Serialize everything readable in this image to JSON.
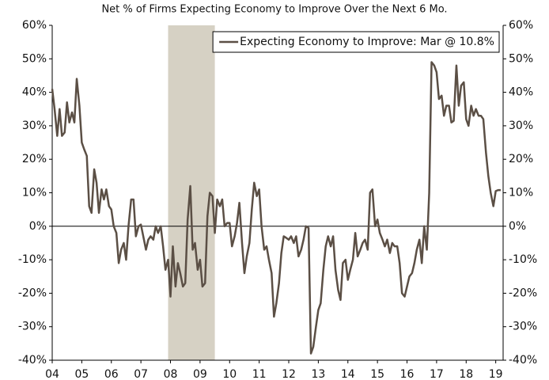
{
  "chart_data": {
    "type": "line",
    "subtitle": "Net % of Firms Expecting Economy to Improve Over the Next 6 Mo.",
    "x": [
      2004,
      2004.08,
      2004.17,
      2004.25,
      2004.33,
      2004.42,
      2004.5,
      2004.58,
      2004.67,
      2004.75,
      2004.83,
      2004.92,
      2005,
      2005.08,
      2005.17,
      2005.25,
      2005.33,
      2005.42,
      2005.5,
      2005.58,
      2005.67,
      2005.75,
      2005.83,
      2005.92,
      2006,
      2006.08,
      2006.17,
      2006.25,
      2006.33,
      2006.42,
      2006.5,
      2006.58,
      2006.67,
      2006.75,
      2006.83,
      2006.92,
      2007,
      2007.08,
      2007.17,
      2007.25,
      2007.33,
      2007.42,
      2007.5,
      2007.58,
      2007.67,
      2007.75,
      2007.83,
      2007.92,
      2008,
      2008.08,
      2008.17,
      2008.25,
      2008.33,
      2008.42,
      2008.5,
      2008.58,
      2008.67,
      2008.75,
      2008.83,
      2008.92,
      2009,
      2009.08,
      2009.17,
      2009.25,
      2009.33,
      2009.42,
      2009.5,
      2009.58,
      2009.67,
      2009.75,
      2009.83,
      2009.92,
      2010,
      2010.08,
      2010.17,
      2010.25,
      2010.33,
      2010.42,
      2010.5,
      2010.58,
      2010.67,
      2010.75,
      2010.83,
      2010.92,
      2011,
      2011.08,
      2011.17,
      2011.25,
      2011.33,
      2011.42,
      2011.5,
      2011.58,
      2011.67,
      2011.75,
      2011.83,
      2011.92,
      2012,
      2012.08,
      2012.17,
      2012.25,
      2012.33,
      2012.42,
      2012.5,
      2012.58,
      2012.67,
      2012.75,
      2012.83,
      2012.92,
      2013,
      2013.08,
      2013.17,
      2013.25,
      2013.33,
      2013.42,
      2013.5,
      2013.58,
      2013.67,
      2013.75,
      2013.83,
      2013.92,
      2014,
      2014.08,
      2014.17,
      2014.25,
      2014.33,
      2014.42,
      2014.5,
      2014.58,
      2014.67,
      2014.75,
      2014.83,
      2014.92,
      2015,
      2015.08,
      2015.17,
      2015.25,
      2015.33,
      2015.42,
      2015.5,
      2015.58,
      2015.67,
      2015.75,
      2015.83,
      2015.92,
      2016,
      2016.08,
      2016.17,
      2016.25,
      2016.33,
      2016.42,
      2016.5,
      2016.58,
      2016.67,
      2016.75,
      2016.83,
      2016.92,
      2017,
      2017.08,
      2017.17,
      2017.25,
      2017.33,
      2017.42,
      2017.5,
      2017.58,
      2017.67,
      2017.75,
      2017.83,
      2017.92,
      2018,
      2018.08,
      2018.17,
      2018.25,
      2018.33,
      2018.42,
      2018.5,
      2018.58,
      2018.67,
      2018.75,
      2018.83,
      2018.92,
      2019,
      2019.08,
      2019.17
    ],
    "series": [
      {
        "name": "Expecting Economy to Improve: Mar @ 10.8%",
        "color": "#5b4f45",
        "values": [
          41,
          35,
          27,
          35,
          27,
          28,
          37,
          31,
          34,
          31,
          44,
          36,
          25,
          23,
          21,
          6,
          4,
          17,
          13,
          4,
          11,
          8,
          11,
          6,
          5,
          0,
          -2,
          -11,
          -7,
          -5,
          -10,
          0,
          8,
          8,
          -3,
          0,
          0.5,
          -3,
          -7,
          -4,
          -3,
          -4,
          0,
          -2,
          0,
          -6,
          -13,
          -10,
          -21,
          -6,
          -18,
          -11,
          -14,
          -18,
          -17,
          2,
          12,
          -7,
          -5,
          -13,
          -10,
          -18,
          -17,
          3,
          10,
          9,
          -2,
          8,
          6,
          8,
          0,
          1,
          1,
          -6,
          -3,
          1,
          7,
          -5,
          -14,
          -9,
          -5,
          5,
          13,
          9,
          11,
          0,
          -7,
          -6,
          -10,
          -14,
          -27,
          -23,
          -17,
          -8,
          -3,
          -3.5,
          -4,
          -3,
          -5,
          -3,
          -9,
          -7,
          -4,
          0,
          -0.5,
          -38,
          -36,
          -30,
          -25,
          -23,
          -13,
          -6,
          -3,
          -6,
          -3,
          -13,
          -19,
          -22,
          -11,
          -10,
          -16,
          -13,
          -10,
          -2,
          -9,
          -7,
          -5,
          -4,
          -7,
          10,
          11,
          0,
          2,
          -2,
          -4,
          -6,
          -4,
          -8,
          -5,
          -6,
          -6,
          -11,
          -20,
          -21,
          -18,
          -15,
          -14,
          -11,
          -7,
          -4,
          -11,
          0,
          -7,
          10,
          49,
          48,
          46,
          38,
          39,
          33,
          36,
          36,
          31,
          31.5,
          48,
          36,
          42,
          43,
          32,
          30,
          36,
          33,
          35,
          33,
          33,
          32,
          22,
          15,
          10,
          6,
          10.5,
          10.8,
          10.8
        ]
      }
    ],
    "xlim": [
      2004,
      2019.25
    ],
    "xticks": [
      {
        "value": 2004,
        "label": "04"
      },
      {
        "value": 2005,
        "label": "05"
      },
      {
        "value": 2006,
        "label": "06"
      },
      {
        "value": 2007,
        "label": "07"
      },
      {
        "value": 2008,
        "label": "08"
      },
      {
        "value": 2009,
        "label": "09"
      },
      {
        "value": 2010,
        "label": "10"
      },
      {
        "value": 2011,
        "label": "11"
      },
      {
        "value": 2012,
        "label": "12"
      },
      {
        "value": 2013,
        "label": "13"
      },
      {
        "value": 2014,
        "label": "14"
      },
      {
        "value": 2015,
        "label": "15"
      },
      {
        "value": 2016,
        "label": "16"
      },
      {
        "value": 2017,
        "label": "17"
      },
      {
        "value": 2018,
        "label": "18"
      },
      {
        "value": 2019,
        "label": "19"
      }
    ],
    "ylim": [
      -40,
      60
    ],
    "yticks": [
      {
        "value": -40,
        "label": "-40%"
      },
      {
        "value": -30,
        "label": "-30%"
      },
      {
        "value": -20,
        "label": "-20%"
      },
      {
        "value": -10,
        "label": "-10%"
      },
      {
        "value": 0,
        "label": "0%"
      },
      {
        "value": 10,
        "label": "10%"
      },
      {
        "value": 20,
        "label": "20%"
      },
      {
        "value": 30,
        "label": "30%"
      },
      {
        "value": 40,
        "label": "40%"
      },
      {
        "value": 50,
        "label": "50%"
      },
      {
        "value": 60,
        "label": "60%"
      }
    ],
    "y2lim": [
      -40,
      60
    ],
    "y2ticks": [
      {
        "value": -40,
        "label": "-40%"
      },
      {
        "value": -30,
        "label": "-30%"
      },
      {
        "value": -20,
        "label": "-20%"
      },
      {
        "value": -10,
        "label": "-10%"
      },
      {
        "value": 0,
        "label": "0%"
      },
      {
        "value": 10,
        "label": "10%"
      },
      {
        "value": 20,
        "label": "20%"
      },
      {
        "value": 30,
        "label": "30%"
      },
      {
        "value": 40,
        "label": "40%"
      },
      {
        "value": 50,
        "label": "50%"
      },
      {
        "value": 60,
        "label": "60%"
      }
    ],
    "recession": [
      2007.92,
      2009.5
    ],
    "recession_color": "#d6d1c4",
    "zero_line": true,
    "grid": false,
    "legend": "upper right"
  }
}
